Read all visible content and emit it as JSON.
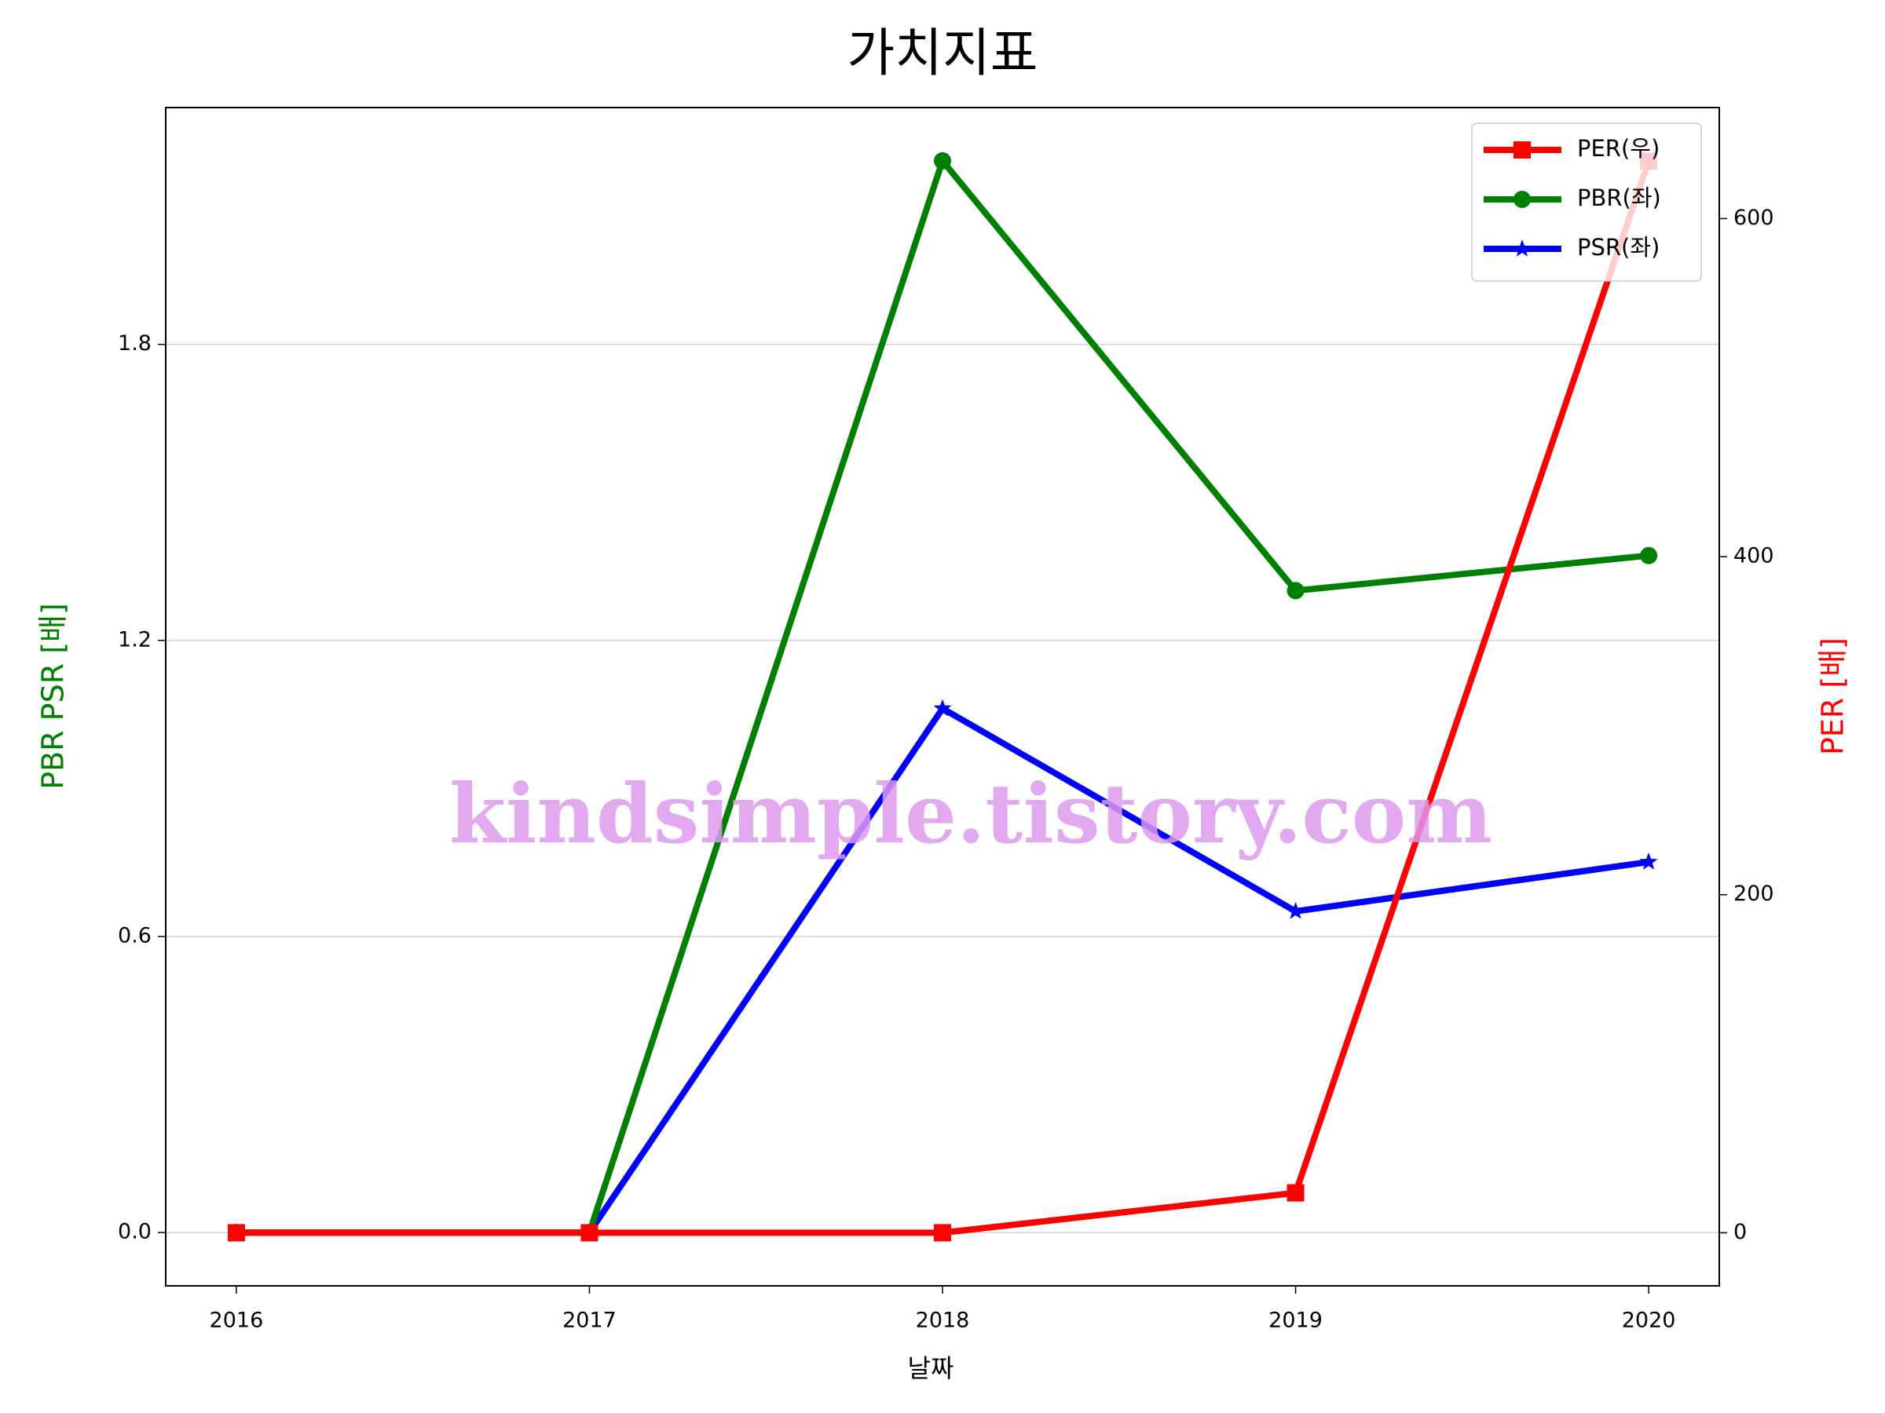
{
  "chart_data": {
    "type": "line",
    "title": "가치지표",
    "xlabel": "날짜",
    "ylabel": "PBR PSR [배]",
    "y2label": "PER [배]",
    "watermark": "kindsimple.tistory.com",
    "x": [
      2016,
      2017,
      2018,
      2019,
      2020
    ],
    "xlim": [
      2015.8,
      2020.2
    ],
    "xticks": [
      2016,
      2017,
      2018,
      2019,
      2020
    ],
    "ylim": [
      -0.108,
      2.28
    ],
    "yticks": [
      {
        "value": 0,
        "label": "0.0"
      },
      0.6,
      1.2,
      1.8
    ],
    "y2lim": [
      -31.4,
      665.7
    ],
    "y2ticks": [
      0,
      200,
      400,
      600
    ],
    "grid": true,
    "legend": "upper right",
    "series": [
      {
        "name": "PER(우)",
        "color": "#ff0000",
        "marker": "square",
        "axis": "y2",
        "values": [
          0,
          0,
          0,
          23.6,
          634
        ]
      },
      {
        "name": "PBR(좌)",
        "color": "#008000",
        "marker": "circle",
        "values": [
          0,
          0,
          2.172,
          1.301,
          1.372
        ]
      },
      {
        "name": "PSR(좌)",
        "color": "#0000ff",
        "marker": "star",
        "values": [
          0,
          0,
          1.062,
          0.651,
          0.751
        ]
      }
    ]
  }
}
